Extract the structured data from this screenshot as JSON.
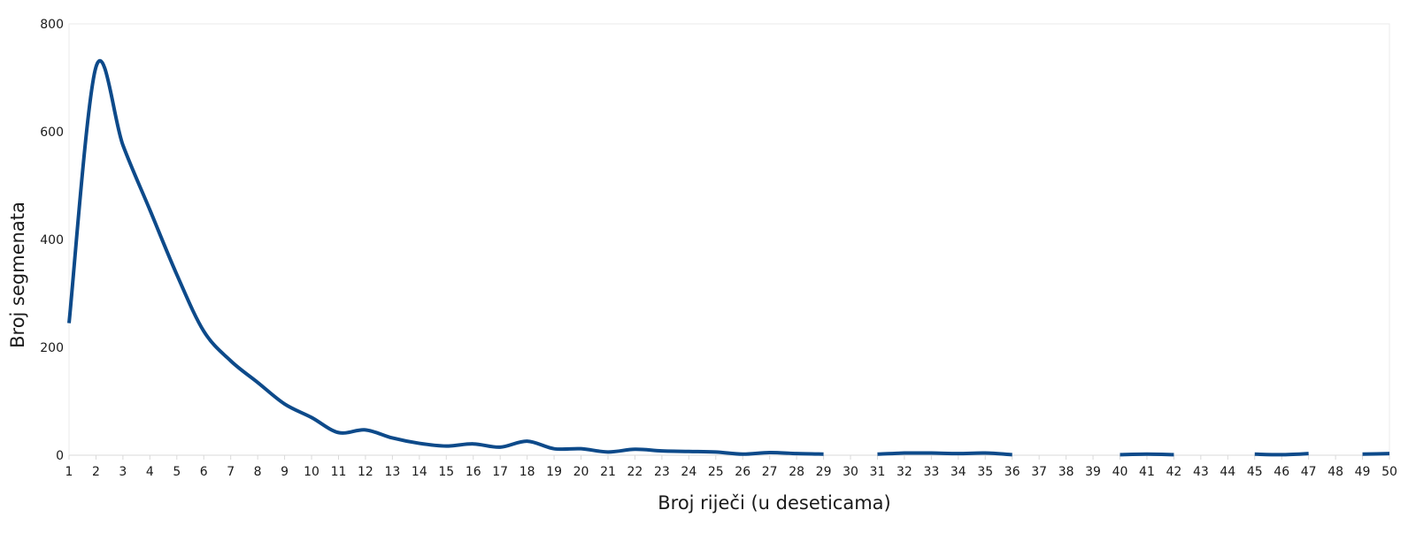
{
  "chart_data": {
    "type": "line",
    "title": "",
    "xlabel": "Broj riječi (u deseticama)",
    "ylabel": "Broj segmenata",
    "xlim": [
      1,
      50
    ],
    "ylim": [
      0,
      800
    ],
    "yticks": [
      0,
      200,
      400,
      600,
      800
    ],
    "x": [
      1,
      2,
      3,
      4,
      5,
      6,
      7,
      8,
      9,
      10,
      11,
      12,
      13,
      14,
      15,
      16,
      17,
      18,
      19,
      20,
      21,
      22,
      23,
      24,
      25,
      26,
      27,
      28,
      29,
      30,
      31,
      32,
      33,
      34,
      35,
      36,
      37,
      38,
      39,
      40,
      41,
      42,
      43,
      44,
      45,
      46,
      47,
      48,
      49,
      50
    ],
    "series": [
      {
        "color": "#0d4a8a",
        "values": [
          245,
          720,
          575,
          455,
          335,
          230,
          175,
          135,
          95,
          70,
          42,
          47,
          32,
          22,
          17,
          21,
          15,
          26,
          12,
          12,
          6,
          11,
          8,
          7,
          6,
          2,
          5,
          3,
          2,
          null,
          2,
          4,
          4,
          3,
          4,
          1,
          null,
          1,
          null,
          1,
          2,
          1,
          null,
          null,
          2,
          1,
          3,
          null,
          2,
          3
        ]
      }
    ],
    "grid": false,
    "legend": "none"
  }
}
